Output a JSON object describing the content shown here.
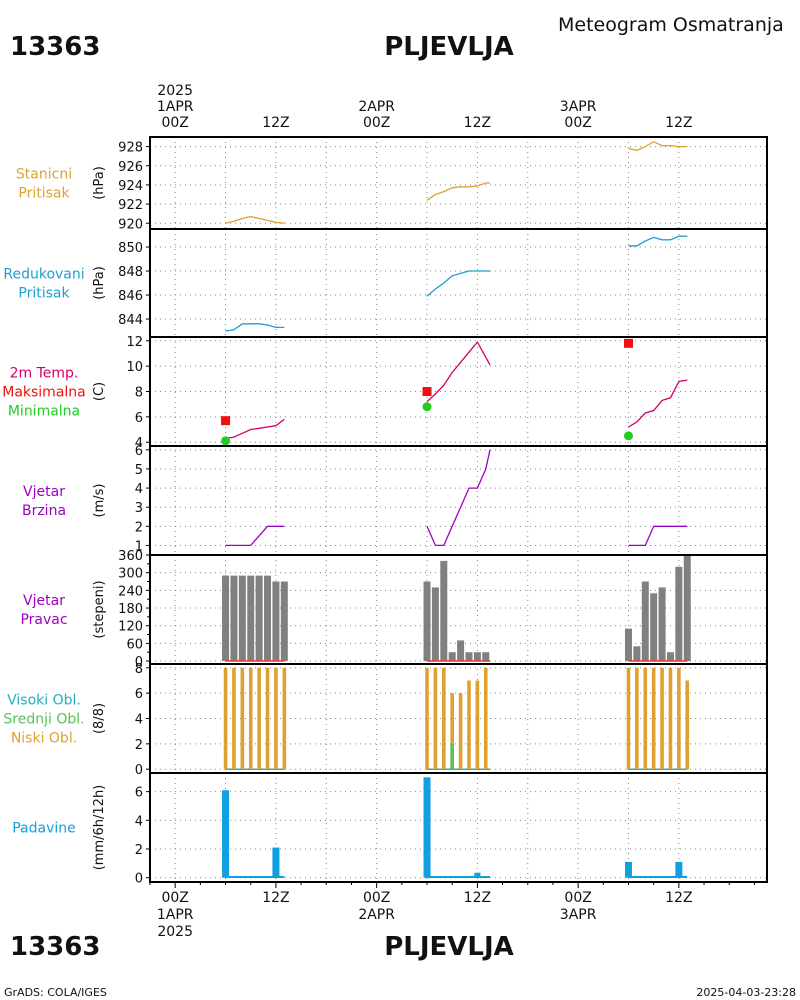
{
  "header": {
    "station_id": "13363",
    "station_name": "PLJEVLJA",
    "subtitle": "Meteogram Osmatranja"
  },
  "footer": {
    "station_id": "13363",
    "station_name": "PLJEVLJA",
    "credit": "GrADS: COLA/IGES",
    "timestamp": "2025-04-03-23:28"
  },
  "time_axis": {
    "year": "2025",
    "labels": [
      {
        "t": 0,
        "top": [
          "2025",
          "1APR",
          "00Z"
        ],
        "bottom": [
          "00Z",
          "1APR",
          "2025"
        ]
      },
      {
        "t": 12,
        "top": [
          "12Z"
        ],
        "bottom": [
          "12Z"
        ]
      },
      {
        "t": 24,
        "top": [
          "2APR",
          "00Z"
        ],
        "bottom": [
          "00Z",
          "2APR"
        ]
      },
      {
        "t": 36,
        "top": [
          "12Z"
        ],
        "bottom": [
          "12Z"
        ]
      },
      {
        "t": 48,
        "top": [
          "3APR",
          "00Z"
        ],
        "bottom": [
          "00Z",
          "3APR"
        ]
      },
      {
        "t": 60,
        "top": [
          "12Z"
        ],
        "bottom": [
          "12Z"
        ]
      }
    ],
    "range_hours": [
      -3,
      70.5
    ]
  },
  "colors": {
    "pressure": "#e0a030",
    "reduced": "#1e9fd0",
    "temp": "#d4006a",
    "tmax": "#ee1111",
    "tmin": "#22cc22",
    "wind": "#a000c0",
    "dir_bar": "#808080",
    "dir_line": "#ee3333",
    "cloud_low": "#e0a030",
    "cloud_mid": "#5ac05a",
    "cloud_high": "#20b0c0",
    "precip": "#109fe0"
  },
  "chart_data": [
    {
      "id": "station_pressure",
      "type": "line",
      "label_lines": [
        "Stanicni",
        "Pritisak"
      ],
      "ylabel": "(hPa)",
      "ylim": [
        919.4,
        929
      ],
      "yticks": [
        920,
        922,
        924,
        926,
        928
      ],
      "series": [
        {
          "color_key": "pressure",
          "points": [
            [
              6,
              920
            ],
            [
              7,
              920.2
            ],
            [
              8,
              920.5
            ],
            [
              9,
              920.7
            ],
            [
              10,
              920.5
            ],
            [
              11,
              920.3
            ],
            [
              12,
              920.1
            ],
            [
              13,
              920
            ]
          ]
        },
        {
          "color_key": "pressure",
          "points": [
            [
              30,
              922.4
            ],
            [
              31,
              923
            ],
            [
              32,
              923.3
            ],
            [
              33,
              923.7
            ],
            [
              34,
              923.8
            ],
            [
              35,
              923.8
            ],
            [
              36,
              923.9
            ],
            [
              37,
              924.2
            ],
            [
              37.5,
              924.2
            ]
          ]
        },
        {
          "color_key": "pressure",
          "points": [
            [
              54,
              927.8
            ],
            [
              55,
              927.6
            ],
            [
              56,
              928
            ],
            [
              57,
              928.5
            ],
            [
              58,
              928.1
            ],
            [
              59,
              928.1
            ],
            [
              60,
              928
            ],
            [
              61,
              928
            ]
          ]
        }
      ]
    },
    {
      "id": "reduced_pressure",
      "type": "line",
      "label_lines": [
        "Redukovani",
        "Pritisak"
      ],
      "ylabel": "(hPa)",
      "ylim": [
        842.5,
        851.5
      ],
      "yticks": [
        844,
        846,
        848,
        850
      ],
      "series": [
        {
          "color_key": "reduced",
          "points": [
            [
              6,
              843
            ],
            [
              7,
              843.1
            ],
            [
              8,
              843.6
            ],
            [
              9,
              843.6
            ],
            [
              10,
              843.6
            ],
            [
              11,
              843.5
            ],
            [
              12,
              843.3
            ],
            [
              13,
              843.3
            ]
          ]
        },
        {
          "color_key": "reduced",
          "points": [
            [
              30,
              845.9
            ],
            [
              31,
              846.5
            ],
            [
              32,
              847
            ],
            [
              33,
              847.6
            ],
            [
              34,
              847.8
            ],
            [
              35,
              848
            ],
            [
              36,
              848
            ],
            [
              37,
              848
            ],
            [
              37.5,
              848
            ]
          ]
        },
        {
          "color_key": "reduced",
          "points": [
            [
              54,
              850.1
            ],
            [
              55,
              850.1
            ],
            [
              56,
              850.5
            ],
            [
              57,
              850.8
            ],
            [
              58,
              850.6
            ],
            [
              59,
              850.6
            ],
            [
              60,
              850.9
            ],
            [
              61,
              850.9
            ]
          ]
        }
      ]
    },
    {
      "id": "temperature",
      "type": "line",
      "label_lines": [
        "2m Temp.",
        "Maksimalna",
        "Minimalna"
      ],
      "label_color_keys": [
        "temp",
        "tmax",
        "tmin"
      ],
      "ylabel": "(C)",
      "ylim": [
        3.7,
        12.3
      ],
      "yticks": [
        4,
        6,
        8,
        10,
        12
      ],
      "series": [
        {
          "color_key": "temp",
          "points": [
            [
              6,
              4.3
            ],
            [
              7,
              4.4
            ],
            [
              8,
              4.7
            ],
            [
              9,
              5
            ],
            [
              10,
              5.1
            ],
            [
              11,
              5.2
            ],
            [
              12,
              5.3
            ],
            [
              13,
              5.8
            ]
          ]
        },
        {
          "color_key": "temp",
          "points": [
            [
              30,
              7.2
            ],
            [
              31,
              7.8
            ],
            [
              32,
              8.5
            ],
            [
              33,
              9.5
            ],
            [
              34,
              10.3
            ],
            [
              35,
              11.1
            ],
            [
              36,
              11.9
            ],
            [
              37,
              10.7
            ],
            [
              37.5,
              10.1
            ]
          ]
        },
        {
          "color_key": "temp",
          "points": [
            [
              54,
              5.2
            ],
            [
              55,
              5.6
            ],
            [
              56,
              6.3
            ],
            [
              57,
              6.5
            ],
            [
              58,
              7.3
            ],
            [
              59,
              7.5
            ],
            [
              60,
              8.8
            ],
            [
              61,
              8.9
            ]
          ]
        }
      ],
      "tmax": [
        [
          6,
          5.7
        ],
        [
          30,
          8
        ],
        [
          54,
          11.8
        ]
      ],
      "tmin": [
        [
          6,
          4.1
        ],
        [
          30,
          6.8
        ],
        [
          54,
          4.5
        ]
      ]
    },
    {
      "id": "wind_speed",
      "type": "line",
      "label_lines": [
        "Vjetar",
        "Brzina"
      ],
      "ylabel": "(m/s)",
      "ylim": [
        0.5,
        6.2
      ],
      "yticks": [
        1,
        2,
        3,
        4,
        5,
        6
      ],
      "series": [
        {
          "color_key": "wind",
          "points": [
            [
              6,
              1
            ],
            [
              7,
              1
            ],
            [
              8,
              1
            ],
            [
              9,
              1
            ],
            [
              10,
              1.5
            ],
            [
              11,
              2
            ],
            [
              12,
              2
            ],
            [
              13,
              2
            ]
          ]
        },
        {
          "color_key": "wind",
          "points": [
            [
              30,
              2
            ],
            [
              31,
              1
            ],
            [
              32,
              1
            ],
            [
              33,
              2
            ],
            [
              34,
              3
            ],
            [
              35,
              4
            ],
            [
              36,
              4
            ],
            [
              37,
              5
            ],
            [
              37.5,
              6
            ]
          ]
        },
        {
          "color_key": "wind",
          "points": [
            [
              54,
              1
            ],
            [
              55,
              1
            ],
            [
              56,
              1
            ],
            [
              57,
              2
            ],
            [
              58,
              2
            ],
            [
              59,
              2
            ],
            [
              60,
              2
            ],
            [
              61,
              2
            ]
          ]
        }
      ]
    },
    {
      "id": "wind_direction",
      "type": "bar",
      "label_lines": [
        "Vjetar",
        "Pravac"
      ],
      "ylabel": "(stepeni)",
      "ylim": [
        -10,
        360
      ],
      "yticks": [
        0,
        60,
        120,
        180,
        240,
        300,
        360
      ],
      "ytick_labels": [
        "0",
        "60",
        "120",
        "180",
        "240",
        "300",
        "360"
      ],
      "extra_yticks": [
        30,
        90,
        150,
        210,
        270,
        330
      ],
      "bars": [
        [
          6,
          290
        ],
        [
          7,
          290
        ],
        [
          8,
          290
        ],
        [
          9,
          290
        ],
        [
          10,
          290
        ],
        [
          11,
          290
        ],
        [
          12,
          270
        ],
        [
          13,
          270
        ],
        [
          30,
          270
        ],
        [
          31,
          250
        ],
        [
          32,
          340
        ],
        [
          33,
          30
        ],
        [
          34,
          70
        ],
        [
          35,
          30
        ],
        [
          36,
          30
        ],
        [
          37,
          30
        ],
        [
          54,
          110
        ],
        [
          55,
          50
        ],
        [
          56,
          270
        ],
        [
          57,
          230
        ],
        [
          58,
          250
        ],
        [
          59,
          30
        ],
        [
          60,
          320
        ],
        [
          61,
          360
        ]
      ],
      "calm_segments": [
        [
          6,
          13
        ],
        [
          30,
          37.5
        ],
        [
          54,
          61
        ]
      ]
    },
    {
      "id": "cloud_cover",
      "type": "bar",
      "label_lines": [
        "Visoki Obl.",
        "Srednji Obl.",
        "Niski Obl."
      ],
      "label_color_keys": [
        "cloud_high",
        "cloud_mid",
        "cloud_low"
      ],
      "ylabel": "(8/8)",
      "ylim": [
        -0.3,
        8.3
      ],
      "yticks": [
        0,
        2,
        4,
        6,
        8
      ],
      "low": [
        [
          6,
          8
        ],
        [
          7,
          8
        ],
        [
          8,
          8
        ],
        [
          9,
          8
        ],
        [
          10,
          8
        ],
        [
          11,
          8
        ],
        [
          12,
          8
        ],
        [
          13,
          8
        ],
        [
          30,
          8
        ],
        [
          31,
          8
        ],
        [
          32,
          8
        ],
        [
          33,
          6
        ],
        [
          34,
          6
        ],
        [
          35,
          7
        ],
        [
          36,
          7
        ],
        [
          37,
          8
        ],
        [
          54,
          8
        ],
        [
          55,
          8
        ],
        [
          56,
          8
        ],
        [
          57,
          8
        ],
        [
          58,
          8
        ],
        [
          59,
          8
        ],
        [
          60,
          8
        ],
        [
          61,
          7
        ]
      ],
      "mid": [
        [
          33,
          2
        ]
      ],
      "high_line_segments": [
        [
          6,
          13
        ],
        [
          30,
          37.5
        ],
        [
          54,
          61
        ]
      ]
    },
    {
      "id": "precipitation",
      "type": "bar",
      "label_lines": [
        "Padavine"
      ],
      "ylabel": "(mm/6h/12h)",
      "ylim": [
        -0.3,
        7.3
      ],
      "yticks": [
        0,
        2,
        4,
        6
      ],
      "big_bars": [
        [
          6,
          6.1
        ],
        [
          12,
          2.1
        ],
        [
          30,
          7
        ],
        [
          54,
          1.1
        ],
        [
          60,
          1.1
        ]
      ],
      "small_bars": [
        [
          36,
          0.35
        ]
      ],
      "trace_segments": [
        [
          6,
          13
        ],
        [
          30,
          37.5
        ],
        [
          54,
          61
        ]
      ]
    }
  ]
}
